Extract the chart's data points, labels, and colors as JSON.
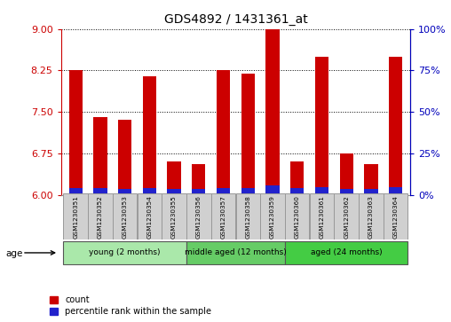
{
  "title": "GDS4892 / 1431361_at",
  "samples": [
    "GSM1230351",
    "GSM1230352",
    "GSM1230353",
    "GSM1230354",
    "GSM1230355",
    "GSM1230356",
    "GSM1230357",
    "GSM1230358",
    "GSM1230359",
    "GSM1230360",
    "GSM1230361",
    "GSM1230362",
    "GSM1230363",
    "GSM1230364"
  ],
  "red_values": [
    8.25,
    7.4,
    7.35,
    8.15,
    6.6,
    6.55,
    8.25,
    8.2,
    9.0,
    6.6,
    8.5,
    6.75,
    6.55,
    8.5
  ],
  "blue_values": [
    6.13,
    6.12,
    6.11,
    6.12,
    6.1,
    6.1,
    6.12,
    6.13,
    6.17,
    6.12,
    6.14,
    6.1,
    6.1,
    6.14
  ],
  "base": 6.0,
  "ylim_left": [
    6.0,
    9.0
  ],
  "ylim_right": [
    0,
    100
  ],
  "yticks_left": [
    6,
    6.75,
    7.5,
    8.25,
    9
  ],
  "yticks_right": [
    0,
    25,
    50,
    75,
    100
  ],
  "groups": [
    {
      "label": "young (2 months)",
      "start": 0,
      "end": 5,
      "color": "#aae8aa"
    },
    {
      "label": "middle aged (12 months)",
      "start": 5,
      "end": 9,
      "color": "#66cc66"
    },
    {
      "label": "aged (24 months)",
      "start": 9,
      "end": 14,
      "color": "#44cc44"
    }
  ],
  "bar_color_red": "#cc0000",
  "bar_color_blue": "#2222cc",
  "bar_width": 0.55,
  "legend_red": "count",
  "legend_blue": "percentile rank within the sample",
  "age_label": "age",
  "tick_color_left": "#cc0000",
  "tick_color_right": "#0000bb"
}
